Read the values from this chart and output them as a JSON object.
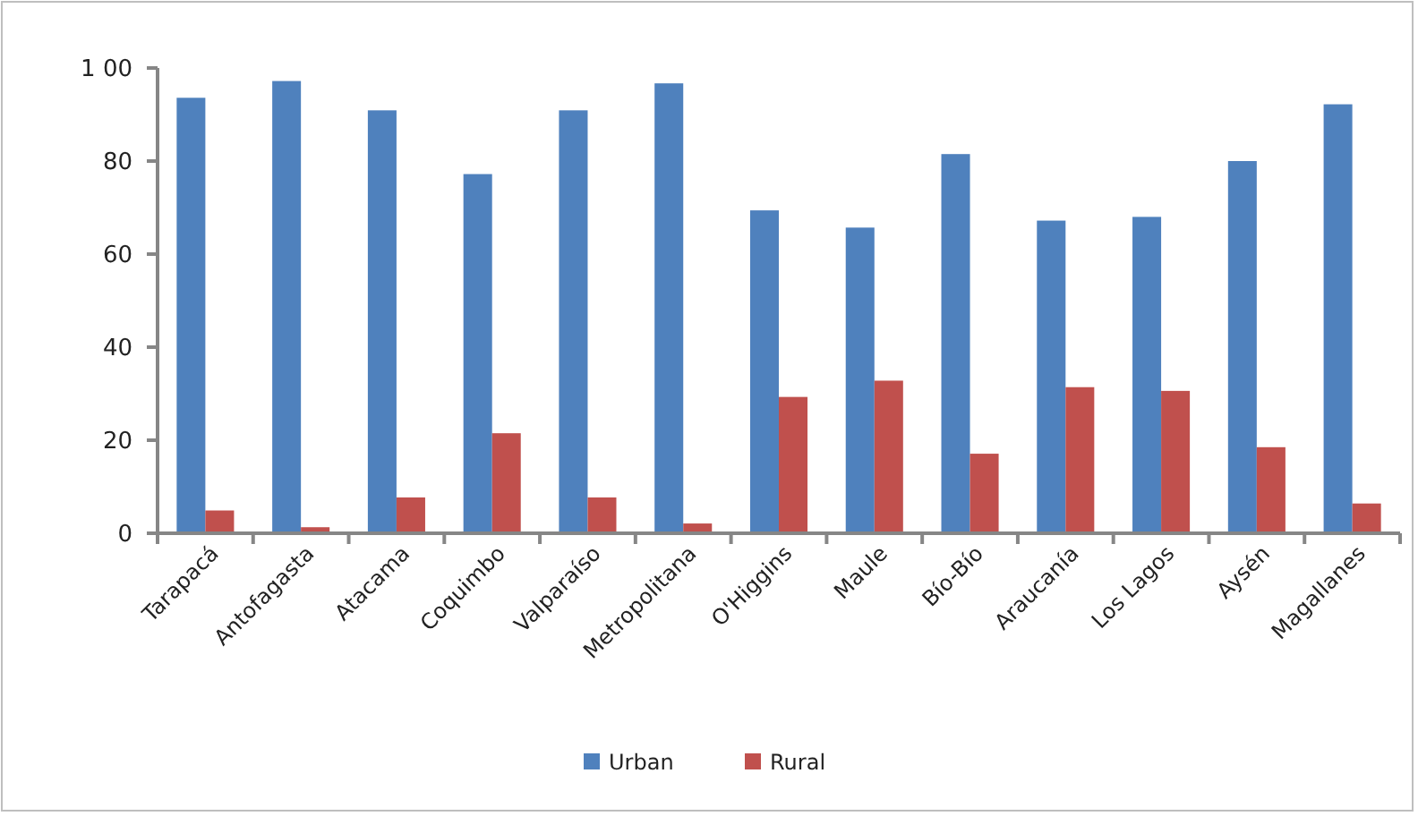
{
  "chart_data": {
    "type": "bar",
    "categories": [
      "Tarapacá",
      "Antofagasta",
      "Atacama",
      "Coquimbo",
      "Valparaíso",
      "Metropolitana",
      "O'Higgins",
      "Maule",
      "Bío-Bío",
      "Araucanía",
      "Los Lagos",
      "Aysén",
      "Magallanes"
    ],
    "series": [
      {
        "name": "Urban",
        "color": "#4f81bd",
        "values": [
          93.6,
          97.2,
          90.9,
          77.2,
          90.9,
          96.7,
          69.4,
          65.7,
          81.5,
          67.2,
          68,
          80,
          92.2
        ]
      },
      {
        "name": "Rural",
        "color": "#c0504d",
        "values": [
          4.9,
          1.3,
          7.7,
          21.5,
          7.7,
          2.1,
          29.3,
          32.8,
          17.1,
          31.4,
          30.6,
          18.5,
          6.4
        ]
      }
    ],
    "ylim": [
      0,
      100
    ],
    "yticks": [
      0,
      20,
      40,
      60,
      80,
      {
        "value": 100,
        "label": "1 00"
      }
    ],
    "grid": false,
    "legend": "bottom"
  }
}
